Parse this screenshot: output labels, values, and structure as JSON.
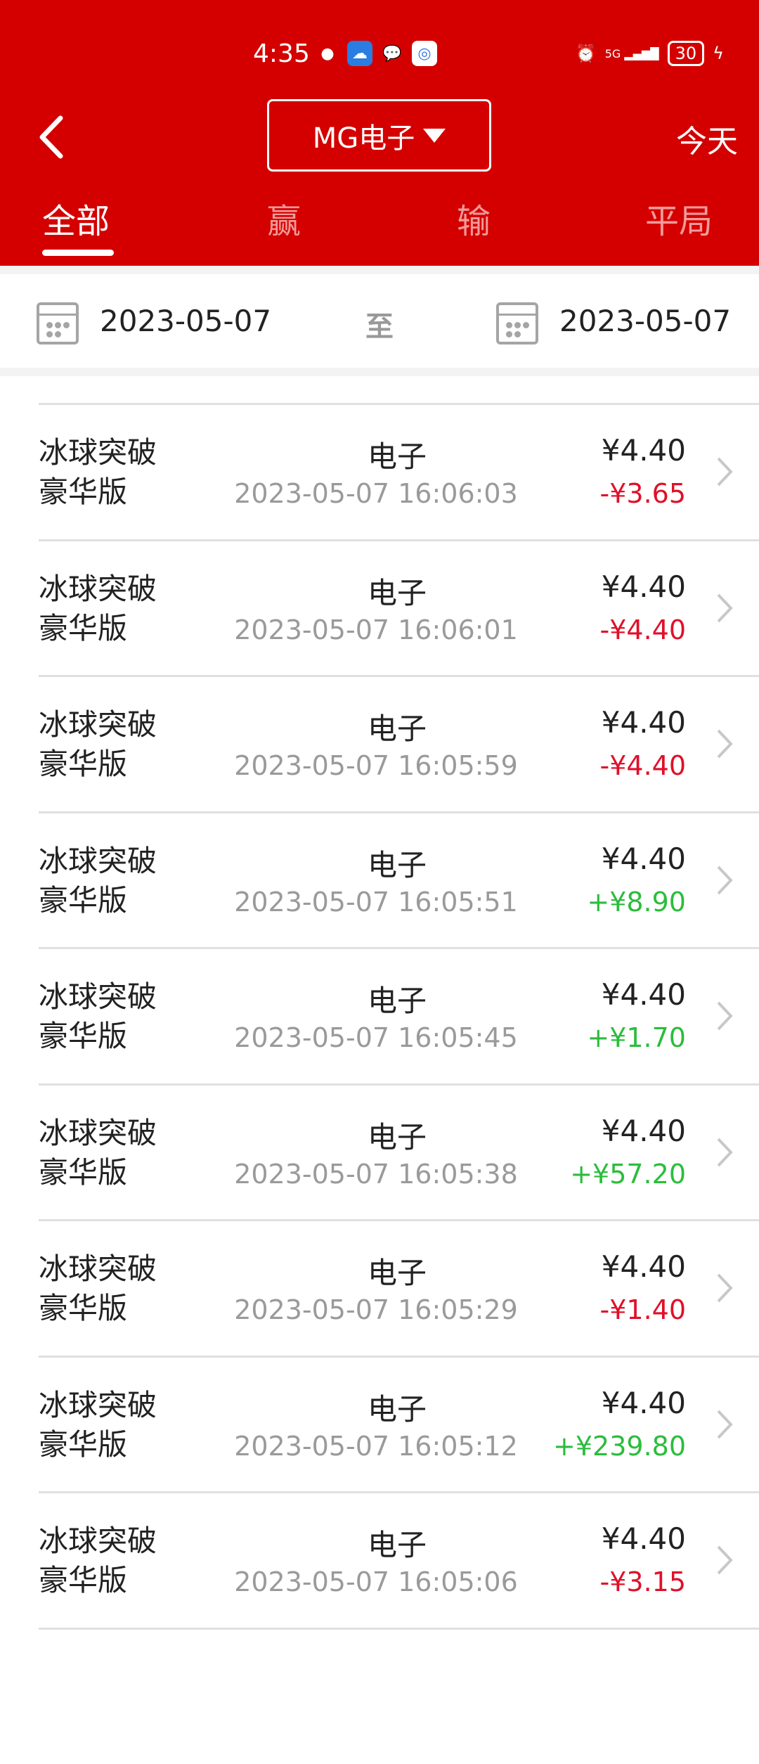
{
  "status": {
    "time": "4:35",
    "battery": "30",
    "network": "5G"
  },
  "header": {
    "dropdown": "MG电子",
    "today": "今天"
  },
  "tabs": [
    "全部",
    "赢",
    "输",
    "平局"
  ],
  "date_range": {
    "start": "2023-05-07",
    "separator": "至",
    "end": "2023-05-07"
  },
  "colors": {
    "brand": "#d40000",
    "loss": "#e0102a",
    "win": "#2bbd3c"
  },
  "records": [
    {
      "name": "冰球突破豪华版",
      "category": "电子",
      "time": "2023-05-07 16:06:03",
      "bet": "¥4.40",
      "result": "-¥3.65",
      "type": "loss"
    },
    {
      "name": "冰球突破豪华版",
      "category": "电子",
      "time": "2023-05-07 16:06:01",
      "bet": "¥4.40",
      "result": "-¥4.40",
      "type": "loss"
    },
    {
      "name": "冰球突破豪华版",
      "category": "电子",
      "time": "2023-05-07 16:05:59",
      "bet": "¥4.40",
      "result": "-¥4.40",
      "type": "loss"
    },
    {
      "name": "冰球突破豪华版",
      "category": "电子",
      "time": "2023-05-07 16:05:51",
      "bet": "¥4.40",
      "result": "+¥8.90",
      "type": "win"
    },
    {
      "name": "冰球突破豪华版",
      "category": "电子",
      "time": "2023-05-07 16:05:45",
      "bet": "¥4.40",
      "result": "+¥1.70",
      "type": "win"
    },
    {
      "name": "冰球突破豪华版",
      "category": "电子",
      "time": "2023-05-07 16:05:38",
      "bet": "¥4.40",
      "result": "+¥57.20",
      "type": "win"
    },
    {
      "name": "冰球突破豪华版",
      "category": "电子",
      "time": "2023-05-07 16:05:29",
      "bet": "¥4.40",
      "result": "-¥1.40",
      "type": "loss"
    },
    {
      "name": "冰球突破豪华版",
      "category": "电子",
      "time": "2023-05-07 16:05:12",
      "bet": "¥4.40",
      "result": "+¥239.80",
      "type": "win"
    },
    {
      "name": "冰球突破豪华版",
      "category": "电子",
      "time": "2023-05-07 16:05:06",
      "bet": "¥4.40",
      "result": "-¥3.15",
      "type": "loss"
    }
  ]
}
